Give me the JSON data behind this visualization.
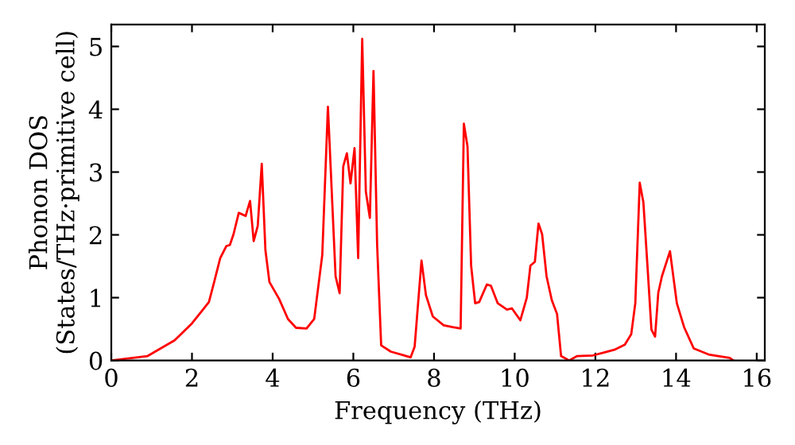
{
  "chart_data": {
    "type": "line",
    "xlabel": "Frequency (THz)",
    "ylabel": "Phonon DOS\n(States/THz·primitive cell)",
    "xlim": [
      0,
      16.2
    ],
    "ylim": [
      0,
      5.35
    ],
    "xticks": [
      0,
      2,
      4,
      6,
      8,
      10,
      12,
      14,
      16
    ],
    "yticks": [
      0,
      1,
      2,
      3,
      4,
      5
    ],
    "grid": false,
    "series": [
      {
        "color": "#ff0000",
        "x": [
          0,
          0.9,
          1.57,
          2.0,
          2.42,
          2.55,
          2.7,
          2.85,
          2.94,
          3.03,
          3.16,
          3.33,
          3.44,
          3.53,
          3.63,
          3.73,
          3.82,
          3.92,
          4.16,
          4.38,
          4.58,
          4.84,
          5.03,
          5.23,
          5.37,
          5.56,
          5.66,
          5.75,
          5.84,
          5.93,
          6.03,
          6.12,
          6.22,
          6.31,
          6.41,
          6.5,
          6.59,
          6.69,
          6.93,
          7.42,
          7.52,
          7.69,
          7.8,
          7.97,
          8.24,
          8.46,
          8.66,
          8.74,
          8.83,
          8.92,
          9.02,
          9.12,
          9.31,
          9.41,
          9.58,
          9.81,
          9.93,
          10.14,
          10.3,
          10.39,
          10.5,
          10.59,
          10.68,
          10.79,
          10.92,
          11.05,
          11.15,
          11.35,
          11.55,
          11.94,
          12.47,
          12.73,
          12.89,
          12.99,
          13.1,
          13.19,
          13.3,
          13.39,
          13.48,
          13.56,
          13.65,
          13.85,
          14.02,
          14.2,
          14.44,
          14.83,
          15.33,
          15.42
        ],
        "values": [
          0,
          0.07,
          0.32,
          0.59,
          0.93,
          1.25,
          1.63,
          1.82,
          1.84,
          2.01,
          2.35,
          2.3,
          2.54,
          1.9,
          2.14,
          3.13,
          1.76,
          1.25,
          0.98,
          0.66,
          0.52,
          0.51,
          0.66,
          1.68,
          4.04,
          1.34,
          1.07,
          3.09,
          3.3,
          2.82,
          3.38,
          1.63,
          5.12,
          2.69,
          2.27,
          4.61,
          1.84,
          0.24,
          0.14,
          0.05,
          0.22,
          1.59,
          1.04,
          0.7,
          0.56,
          0.53,
          0.51,
          3.77,
          3.41,
          1.51,
          0.91,
          0.93,
          1.21,
          1.19,
          0.91,
          0.81,
          0.83,
          0.64,
          1.0,
          1.51,
          1.57,
          2.18,
          2.01,
          1.34,
          0.96,
          0.74,
          0.07,
          0.0,
          0.07,
          0.08,
          0.17,
          0.25,
          0.42,
          0.91,
          2.83,
          2.52,
          1.42,
          0.49,
          0.38,
          1.08,
          1.34,
          1.74,
          0.91,
          0.53,
          0.19,
          0.09,
          0.04,
          0.0
        ]
      }
    ]
  }
}
